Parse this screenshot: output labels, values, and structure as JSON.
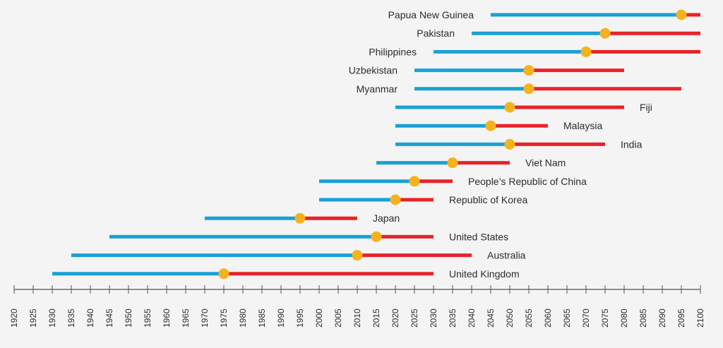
{
  "chart_data": {
    "type": "timeline",
    "title": "",
    "xlabel": "",
    "ylabel": "",
    "xlim": [
      1920,
      2100
    ],
    "tick_interval": 5,
    "x_ticks": [
      "1920",
      "1925",
      "1930",
      "1935",
      "1940",
      "1945",
      "1950",
      "1955",
      "1960",
      "1965",
      "1970",
      "1975",
      "1980",
      "1985",
      "1990",
      "1995",
      "2000",
      "2005",
      "2010",
      "2015",
      "2020",
      "2025",
      "2030",
      "2035",
      "2040",
      "2045",
      "2050",
      "2055",
      "2060",
      "2065",
      "2070",
      "2075",
      "2080",
      "2085",
      "2090",
      "2095",
      "2100"
    ],
    "colors": {
      "first_segment": "#1aa0d6",
      "second_segment": "#e8232a",
      "marker": "#f5b21c",
      "axis": "#555555"
    },
    "label_placement": "left of bar for the top five rows, right of bar for the rest",
    "rows": [
      {
        "country": "Papua New Guinea",
        "start": 2045,
        "marker": 2095,
        "end": 2100
      },
      {
        "country": "Pakistan",
        "start": 2040,
        "marker": 2075,
        "end": 2100
      },
      {
        "country": "Philippines",
        "start": 2030,
        "marker": 2070,
        "end": 2100
      },
      {
        "country": "Uzbekistan",
        "start": 2025,
        "marker": 2055,
        "end": 2080
      },
      {
        "country": "Myanmar",
        "start": 2025,
        "marker": 2055,
        "end": 2095
      },
      {
        "country": "Fiji",
        "start": 2020,
        "marker": 2050,
        "end": 2080
      },
      {
        "country": "Malaysia",
        "start": 2020,
        "marker": 2045,
        "end": 2060
      },
      {
        "country": "India",
        "start": 2020,
        "marker": 2050,
        "end": 2075
      },
      {
        "country": "Viet Nam",
        "start": 2015,
        "marker": 2035,
        "end": 2050
      },
      {
        "country": "People’s Republic of China",
        "start": 2000,
        "marker": 2025,
        "end": 2035
      },
      {
        "country": "Republic of Korea",
        "start": 2000,
        "marker": 2020,
        "end": 2030
      },
      {
        "country": "Japan",
        "start": 1970,
        "marker": 1995,
        "end": 2010
      },
      {
        "country": "United States",
        "start": 1945,
        "marker": 2015,
        "end": 2030
      },
      {
        "country": "Australia",
        "start": 1935,
        "marker": 2010,
        "end": 2040
      },
      {
        "country": "United Kingdom",
        "start": 1930,
        "marker": 1975,
        "end": 2030
      }
    ]
  }
}
